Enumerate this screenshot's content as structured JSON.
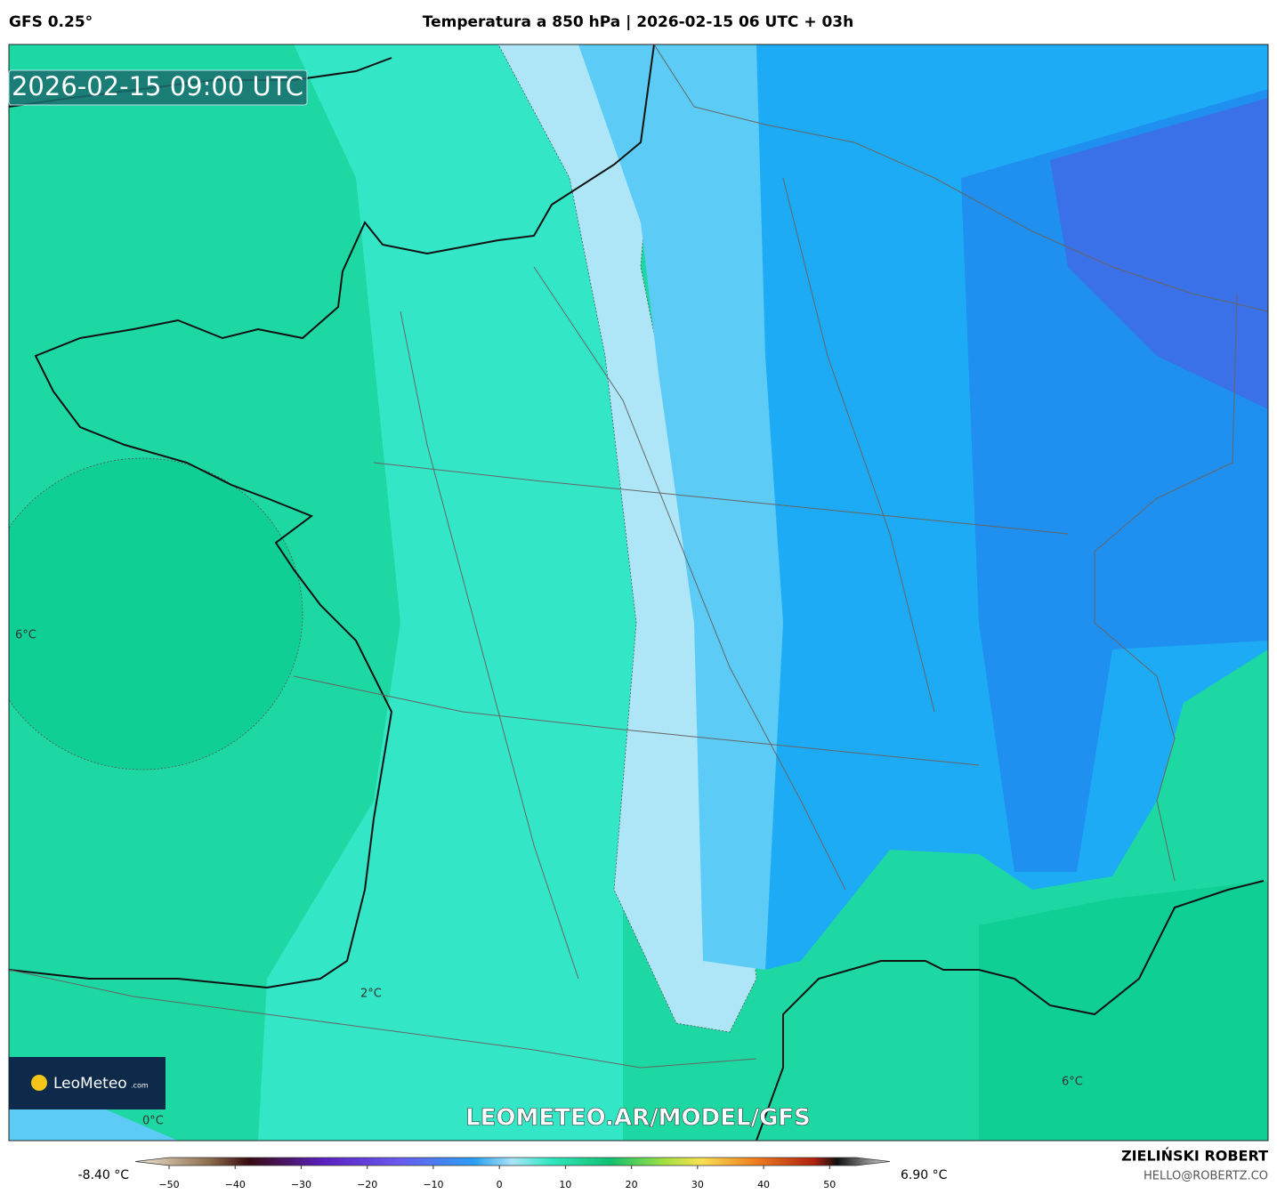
{
  "header": {
    "model": "GFS 0.25°",
    "title": "Temperatura a 850 hPa | 2026-02-15 06 UTC + 03h"
  },
  "map": {
    "timestamp": "2026-02-15 09:00 UTC",
    "contour_labels": [
      "6°C",
      "2°C",
      "0°C",
      "6°C"
    ],
    "logo": {
      "name": "LeoMeteo",
      "suffix": ".com"
    },
    "watermark": "LEOMETEO.AR/MODEL/GFS"
  },
  "colorbar": {
    "min_label": "-8.40 °C",
    "max_label": "6.90 °C",
    "lim": [
      -50,
      54
    ],
    "ticks": [
      {
        "value": -50,
        "label": "−50"
      },
      {
        "value": -40,
        "label": "−40"
      },
      {
        "value": -30,
        "label": "−30"
      },
      {
        "value": -20,
        "label": "−20"
      },
      {
        "value": -10,
        "label": "−10"
      },
      0,
      10,
      20,
      30,
      40,
      50
    ]
  },
  "footer": {
    "author": "ZIELIŃSKI ROBERT",
    "email": "HELLO@ROBERTZ.CO"
  }
}
